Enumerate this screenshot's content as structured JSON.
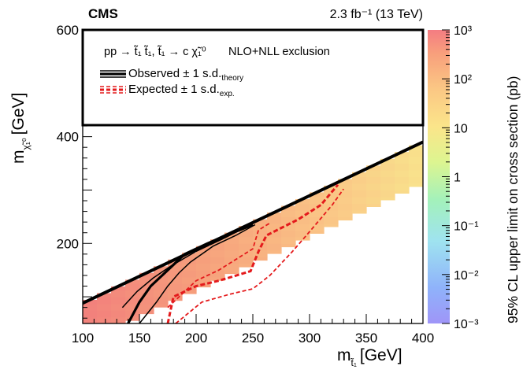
{
  "chart_data": {
    "type": "heatmap",
    "experiment": "CMS",
    "lumi_energy": "2.3 fb⁻¹ (13 TeV)",
    "xlabel": "m",
    "xlabel_sub": "t̃₁",
    "xlabel_unit": "[GeV]",
    "ylabel": "m",
    "ylabel_sub": "χ̃₁⁰",
    "ylabel_unit": "[GeV]",
    "xlim": [
      100,
      400
    ],
    "ylim": [
      50,
      600
    ],
    "x_ticks": [
      "100",
      "150",
      "200",
      "250",
      "300",
      "350",
      "400"
    ],
    "y_ticks": [
      "200",
      "400",
      "600"
    ],
    "colorbar": {
      "label": "95% CL upper limit on cross section (pb)",
      "scale": "log",
      "range": [
        0.001,
        1000
      ],
      "tick_labels": [
        "10⁻³",
        "10⁻²",
        "10⁻¹",
        "1",
        "10",
        "10²",
        "10³"
      ]
    },
    "legend": {
      "process": "pp → t̃₁ t̃₁, t̃₁ → c χ̃₁⁰",
      "exclusion": "NLO+NLL exclusion",
      "observed": "Observed ± 1 s.d.",
      "observed_sub": "theory",
      "expected": "Expected ± 1 s.d.",
      "expected_sub": "exp."
    },
    "band_edges": {
      "upper": [
        [
          100,
          88
        ],
        [
          400,
          390
        ]
      ],
      "lower": [
        [
          138,
          50
        ],
        [
          400,
          313
        ]
      ]
    },
    "observed": [
      [
        140,
        50
      ],
      [
        150,
        90
      ],
      [
        160,
        120
      ],
      [
        170,
        140
      ],
      [
        180,
        160
      ],
      [
        190,
        180
      ],
      [
        210,
        200
      ],
      [
        230,
        218
      ],
      [
        250,
        235
      ]
    ],
    "observed_plus": [
      [
        150,
        50
      ],
      [
        165,
        90
      ],
      [
        175,
        120
      ],
      [
        185,
        145
      ],
      [
        195,
        165
      ],
      [
        215,
        195
      ],
      [
        235,
        215
      ],
      [
        252,
        235
      ]
    ],
    "observed_minus": [
      [
        135,
        80
      ],
      [
        148,
        110
      ],
      [
        162,
        135
      ],
      [
        178,
        158
      ],
      [
        200,
        185
      ],
      [
        225,
        210
      ],
      [
        248,
        235
      ]
    ],
    "expected": [
      [
        175,
        50
      ],
      [
        180,
        100
      ],
      [
        200,
        120
      ],
      [
        220,
        130
      ],
      [
        248,
        148
      ],
      [
        255,
        185
      ],
      [
        262,
        215
      ],
      [
        290,
        245
      ],
      [
        310,
        272
      ],
      [
        325,
        310
      ]
    ],
    "expected_plus": [
      [
        175,
        80
      ],
      [
        200,
        130
      ],
      [
        220,
        150
      ],
      [
        250,
        190
      ],
      [
        255,
        225
      ],
      [
        265,
        238
      ]
    ],
    "expected_minus": [
      [
        182,
        50
      ],
      [
        205,
        90
      ],
      [
        230,
        105
      ],
      [
        250,
        115
      ],
      [
        265,
        140
      ],
      [
        285,
        185
      ],
      [
        300,
        222
      ],
      [
        320,
        272
      ],
      [
        330,
        302
      ]
    ]
  }
}
